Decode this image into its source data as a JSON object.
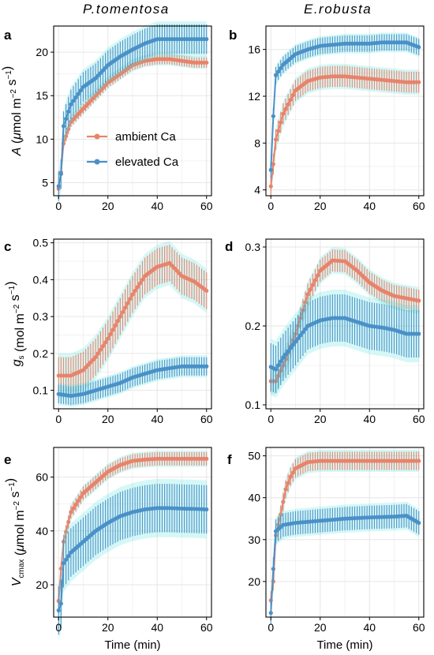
{
  "column_titles": [
    "P.tomentosa",
    "E.robusta"
  ],
  "colors": {
    "ambient": "#E8836B",
    "elevated": "#4A90C8",
    "ribbon": "#3FE0DC",
    "grid": "#E6E6E6"
  },
  "legend": {
    "items": [
      "ambient Ca",
      "elevated Ca"
    ],
    "placement": "inside-left of panel a"
  },
  "xlabel": "Time (min)",
  "chart_data": [
    {
      "panel": "a",
      "type": "line",
      "ylabel": "A (μmol m⁻² s⁻¹)",
      "xlim": [
        -2,
        62
      ],
      "ylim": [
        3.5,
        23
      ],
      "xticks": [
        0,
        20,
        40,
        60
      ],
      "yticks": [
        5,
        10,
        15,
        20
      ],
      "series": [
        {
          "name": "ambient Ca",
          "points": [
            [
              0,
              4.3
            ],
            [
              1,
              6.2
            ],
            [
              2,
              9.5
            ],
            [
              5,
              12
            ],
            [
              10,
              13.5
            ],
            [
              15,
              15
            ],
            [
              20,
              16.5
            ],
            [
              25,
              17.5
            ],
            [
              30,
              18.5
            ],
            [
              35,
              19
            ],
            [
              40,
              19.2
            ],
            [
              45,
              19.2
            ],
            [
              50,
              19
            ],
            [
              55,
              18.8
            ],
            [
              60,
              18.8
            ]
          ],
          "err": 0.6
        },
        {
          "name": "elevated Ca",
          "points": [
            [
              0,
              4.6
            ],
            [
              1,
              6
            ],
            [
              2,
              11.5
            ],
            [
              5,
              14
            ],
            [
              10,
              16
            ],
            [
              15,
              17
            ],
            [
              20,
              18.5
            ],
            [
              25,
              19.5
            ],
            [
              30,
              20.3
            ],
            [
              35,
              21
            ],
            [
              40,
              21.5
            ],
            [
              45,
              21.5
            ],
            [
              50,
              21.5
            ],
            [
              55,
              21.5
            ],
            [
              60,
              21.5
            ]
          ],
          "err": 1.7
        }
      ]
    },
    {
      "panel": "b",
      "type": "line",
      "ylabel": "",
      "xlim": [
        -2,
        62
      ],
      "ylim": [
        3.5,
        18
      ],
      "xticks": [
        0,
        20,
        40,
        60
      ],
      "yticks": [
        4,
        8,
        12,
        16
      ],
      "series": [
        {
          "name": "ambient Ca",
          "points": [
            [
              0,
              4.3
            ],
            [
              1,
              6.2
            ],
            [
              2,
              8.3
            ],
            [
              5,
              10.5
            ],
            [
              10,
              12.5
            ],
            [
              15,
              13.3
            ],
            [
              20,
              13.6
            ],
            [
              25,
              13.7
            ],
            [
              30,
              13.7
            ],
            [
              35,
              13.6
            ],
            [
              40,
              13.5
            ],
            [
              45,
              13.4
            ],
            [
              50,
              13.3
            ],
            [
              55,
              13.2
            ],
            [
              60,
              13.2
            ]
          ],
          "err": 0.9
        },
        {
          "name": "elevated Ca",
          "points": [
            [
              0,
              5.7
            ],
            [
              1,
              10.3
            ],
            [
              2,
              13.8
            ],
            [
              5,
              14.7
            ],
            [
              10,
              15.6
            ],
            [
              15,
              16
            ],
            [
              20,
              16.3
            ],
            [
              25,
              16.4
            ],
            [
              30,
              16.5
            ],
            [
              35,
              16.5
            ],
            [
              40,
              16.5
            ],
            [
              45,
              16.6
            ],
            [
              50,
              16.6
            ],
            [
              55,
              16.6
            ],
            [
              60,
              16.2
            ]
          ],
          "err": 0.7
        }
      ]
    },
    {
      "panel": "c",
      "type": "line",
      "ylabel": "gs (mol m⁻² s⁻¹)",
      "xlim": [
        -2,
        62
      ],
      "ylim": [
        0.05,
        0.51
      ],
      "xticks": [
        0,
        20,
        40,
        60
      ],
      "yticks": [
        0.1,
        0.2,
        0.3,
        0.4,
        0.5
      ],
      "series": [
        {
          "name": "ambient Ca",
          "points": [
            [
              0,
              0.14
            ],
            [
              5,
              0.14
            ],
            [
              10,
              0.155
            ],
            [
              15,
              0.19
            ],
            [
              20,
              0.24
            ],
            [
              25,
              0.3
            ],
            [
              30,
              0.36
            ],
            [
              35,
              0.41
            ],
            [
              40,
              0.435
            ],
            [
              45,
              0.445
            ],
            [
              50,
              0.41
            ],
            [
              55,
              0.395
            ],
            [
              60,
              0.37
            ]
          ],
          "err": 0.05
        },
        {
          "name": "elevated Ca",
          "points": [
            [
              0,
              0.09
            ],
            [
              5,
              0.085
            ],
            [
              10,
              0.09
            ],
            [
              15,
              0.1
            ],
            [
              20,
              0.11
            ],
            [
              25,
              0.12
            ],
            [
              30,
              0.135
            ],
            [
              35,
              0.145
            ],
            [
              40,
              0.155
            ],
            [
              45,
              0.16
            ],
            [
              50,
              0.165
            ],
            [
              55,
              0.165
            ],
            [
              60,
              0.165
            ]
          ],
          "err": 0.025
        }
      ]
    },
    {
      "panel": "d",
      "type": "line",
      "ylabel": "",
      "xlim": [
        -2,
        62
      ],
      "ylim": [
        0.095,
        0.31
      ],
      "xticks": [
        0,
        20,
        40,
        60
      ],
      "yticks": [
        0.1,
        0.2,
        0.3
      ],
      "series": [
        {
          "name": "ambient Ca",
          "points": [
            [
              0,
              0.13
            ],
            [
              2,
              0.13
            ],
            [
              5,
              0.15
            ],
            [
              10,
              0.19
            ],
            [
              15,
              0.24
            ],
            [
              20,
              0.27
            ],
            [
              25,
              0.283
            ],
            [
              30,
              0.282
            ],
            [
              35,
              0.27
            ],
            [
              40,
              0.255
            ],
            [
              45,
              0.245
            ],
            [
              50,
              0.238
            ],
            [
              55,
              0.235
            ],
            [
              60,
              0.232
            ]
          ],
          "err": 0.014
        },
        {
          "name": "elevated Ca",
          "points": [
            [
              0,
              0.148
            ],
            [
              2,
              0.145
            ],
            [
              5,
              0.16
            ],
            [
              10,
              0.18
            ],
            [
              15,
              0.2
            ],
            [
              20,
              0.207
            ],
            [
              25,
              0.21
            ],
            [
              30,
              0.21
            ],
            [
              35,
              0.205
            ],
            [
              40,
              0.2
            ],
            [
              45,
              0.198
            ],
            [
              50,
              0.195
            ],
            [
              55,
              0.19
            ],
            [
              60,
              0.19
            ]
          ],
          "err": 0.03
        }
      ]
    },
    {
      "panel": "e",
      "type": "line",
      "ylabel": "Vcmax (μmol m⁻² s⁻¹)",
      "xlim": [
        -2,
        62
      ],
      "ylim": [
        8,
        71
      ],
      "xticks": [
        0,
        20,
        40,
        60
      ],
      "yticks": [
        20,
        40,
        60
      ],
      "series": [
        {
          "name": "ambient Ca",
          "points": [
            [
              0,
              14
            ],
            [
              1,
              26
            ],
            [
              2,
              36
            ],
            [
              5,
              47
            ],
            [
              10,
              54
            ],
            [
              15,
              58
            ],
            [
              20,
              62
            ],
            [
              25,
              64.5
            ],
            [
              30,
              66
            ],
            [
              35,
              66.5
            ],
            [
              40,
              66.8
            ],
            [
              45,
              66.8
            ],
            [
              50,
              66.8
            ],
            [
              55,
              66.8
            ],
            [
              60,
              66.8
            ]
          ],
          "err": 2.5
        },
        {
          "name": "elevated Ca",
          "points": [
            [
              0,
              10.5
            ],
            [
              1,
              13
            ],
            [
              2,
              28
            ],
            [
              5,
              32
            ],
            [
              10,
              36
            ],
            [
              15,
              40
            ],
            [
              20,
              43
            ],
            [
              25,
              45.5
            ],
            [
              30,
              47
            ],
            [
              35,
              48
            ],
            [
              40,
              48.5
            ],
            [
              45,
              48.5
            ],
            [
              50,
              48.3
            ],
            [
              55,
              48.2
            ],
            [
              60,
              48
            ]
          ],
          "err": 9
        }
      ]
    },
    {
      "panel": "f",
      "type": "line",
      "ylabel": "",
      "xlim": [
        -2,
        62
      ],
      "ylim": [
        11.5,
        52
      ],
      "xticks": [
        0,
        20,
        40,
        60
      ],
      "yticks": [
        20,
        30,
        40,
        50
      ],
      "series": [
        {
          "name": "ambient Ca",
          "points": [
            [
              0,
              15.5
            ],
            [
              1,
              20
            ],
            [
              2,
              31
            ],
            [
              4,
              36
            ],
            [
              6,
              42
            ],
            [
              8,
              45
            ],
            [
              10,
              47
            ],
            [
              15,
              48.5
            ],
            [
              20,
              48.8
            ],
            [
              30,
              48.8
            ],
            [
              40,
              48.8
            ],
            [
              50,
              48.8
            ],
            [
              60,
              48.8
            ]
          ],
          "err": 2.2
        },
        {
          "name": "elevated Ca",
          "points": [
            [
              0,
              12.5
            ],
            [
              1,
              23
            ],
            [
              2,
              32
            ],
            [
              5,
              33.5
            ],
            [
              10,
              34
            ],
            [
              20,
              34.5
            ],
            [
              30,
              35
            ],
            [
              40,
              35.3
            ],
            [
              50,
              35.5
            ],
            [
              55,
              35.7
            ],
            [
              60,
              34
            ]
          ],
          "err": 2.8
        }
      ]
    }
  ]
}
